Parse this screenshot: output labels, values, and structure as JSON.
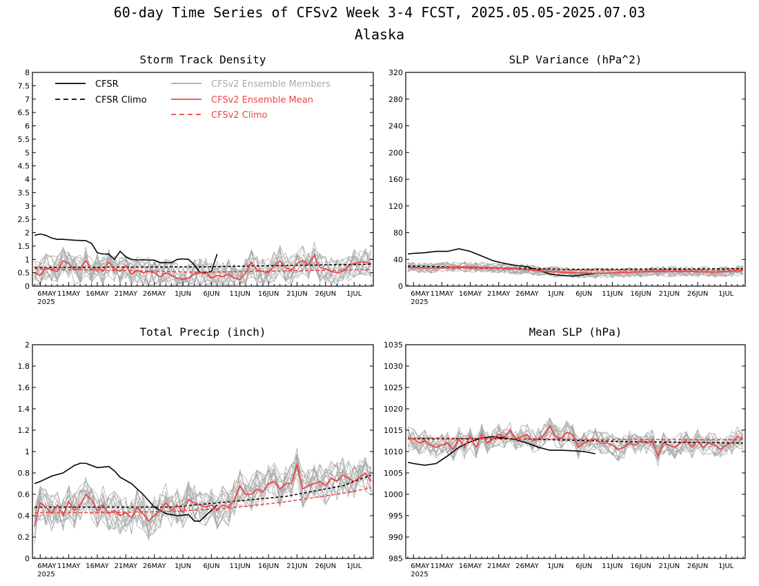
{
  "title": "60-day Time Series of CFSv2 Week 3-4 FCST, 2025.05.05-2025.07.03",
  "subtitle": "Alaska",
  "colors": {
    "cfsr": "#000000",
    "cfsr_climo": "#000000",
    "members": "#aaaaaa",
    "ens_mean": "#ee4444",
    "cfsv2_climo": "#ee4444"
  },
  "legend": {
    "cfsr": "CFSR",
    "cfsr_climo": "CFSR Climo",
    "members": "CFSv2 Ensemble Members",
    "ens_mean": "CFSv2 Ensemble Mean",
    "cfsv2_climo": "CFSv2 Climo"
  },
  "x_axis": {
    "days": 60,
    "start": "2025-05-05",
    "tick_labels": [
      "6MAY",
      "11MAY",
      "16MAY",
      "21MAY",
      "26MAY",
      "1JUN",
      "6JUN",
      "11JUN",
      "16JUN",
      "21JUN",
      "26JUN",
      "1JUL"
    ],
    "year_label": "2025"
  },
  "chart_data": [
    {
      "type": "line",
      "title": "Storm Track Density",
      "ylim": [
        0,
        8
      ],
      "yticks": [
        "0",
        "0.5",
        "1",
        "1.5",
        "2",
        "2.5",
        "3",
        "3.5",
        "4",
        "4.5",
        "5",
        "5.5",
        "6",
        "6.5",
        "7",
        "7.5",
        "8"
      ],
      "ytick_values": [
        0,
        0.5,
        1,
        1.5,
        2,
        2.5,
        3,
        3.5,
        4,
        4.5,
        5,
        5.5,
        6,
        6.5,
        7,
        7.5,
        8
      ],
      "series": [
        {
          "name": "CFSR",
          "x": [
            1,
            2,
            3,
            4,
            5,
            6,
            8,
            10,
            11,
            12,
            13,
            14,
            15,
            16,
            17,
            18,
            19,
            20,
            21,
            22,
            23,
            24,
            25,
            26,
            27,
            28,
            29,
            30,
            31,
            32,
            33
          ],
          "values": [
            1.9,
            1.95,
            1.9,
            1.8,
            1.75,
            1.75,
            1.72,
            1.7,
            1.6,
            1.25,
            1.2,
            1.2,
            1.0,
            1.3,
            1.1,
            1.0,
            0.98,
            0.98,
            0.98,
            0.97,
            0.88,
            0.88,
            0.88,
            1.0,
            1.02,
            1.0,
            0.8,
            0.5,
            0.5,
            0.55,
            1.2
          ]
        },
        {
          "name": "CFSR Climo",
          "x": [
            1,
            30,
            60
          ],
          "values": [
            0.7,
            0.72,
            0.82
          ]
        },
        {
          "name": "CFSv2 Climo",
          "x": [
            1,
            30,
            60
          ],
          "values": [
            0.65,
            0.52,
            0.62
          ]
        },
        {
          "name": "CFSv2 Ensemble Mean",
          "x": [
            1,
            2,
            3,
            4,
            5,
            6,
            7,
            8,
            9,
            10,
            11,
            12,
            13,
            14,
            15,
            16,
            17,
            18,
            19,
            20,
            21,
            22,
            23,
            24,
            25,
            26,
            27,
            28,
            29,
            30,
            31,
            32,
            33,
            34,
            35,
            36,
            37,
            38,
            39,
            40,
            41,
            42,
            43,
            44,
            45,
            46,
            47,
            48,
            49,
            50,
            51,
            52,
            53,
            54,
            55,
            56,
            57,
            58,
            59,
            60
          ],
          "values": [
            0.5,
            0.4,
            0.7,
            0.6,
            0.55,
            0.95,
            0.85,
            0.6,
            0.65,
            0.95,
            0.6,
            0.7,
            0.55,
            0.9,
            0.65,
            0.55,
            0.75,
            0.45,
            0.6,
            0.5,
            0.55,
            0.5,
            0.35,
            0.5,
            0.4,
            0.3,
            0.25,
            0.3,
            0.45,
            0.5,
            0.55,
            0.3,
            0.4,
            0.35,
            0.45,
            0.3,
            0.25,
            0.5,
            0.9,
            0.6,
            0.55,
            0.5,
            0.75,
            0.95,
            0.7,
            0.6,
            0.85,
            0.95,
            0.8,
            1.15,
            0.7,
            0.65,
            0.55,
            0.5,
            0.55,
            0.75,
            0.85,
            0.9,
            0.9,
            0.85
          ]
        }
      ]
    },
    {
      "type": "line",
      "title": "SLP Variance (hPa^2)",
      "ylim": [
        0,
        320
      ],
      "yticks": [
        "0",
        "40",
        "80",
        "120",
        "160",
        "200",
        "240",
        "280",
        "320"
      ],
      "ytick_values": [
        0,
        40,
        80,
        120,
        160,
        200,
        240,
        280,
        320
      ],
      "series": [
        {
          "name": "CFSR",
          "x": [
            1,
            2,
            4,
            6,
            8,
            10,
            12,
            14,
            16,
            18,
            20,
            22,
            24,
            26,
            28,
            30,
            32,
            34
          ],
          "values": [
            48,
            49,
            50,
            52,
            52,
            56,
            52,
            45,
            38,
            34,
            31,
            29,
            24,
            18,
            16,
            15,
            17,
            19
          ]
        },
        {
          "name": "CFSR Climo",
          "x": [
            1,
            30,
            60
          ],
          "values": [
            30,
            25,
            26
          ]
        },
        {
          "name": "CFSv2 Climo",
          "x": [
            1,
            30,
            60
          ],
          "values": [
            28,
            24,
            24
          ]
        },
        {
          "name": "CFSv2 Ensemble Mean",
          "x": [
            1,
            5,
            10,
            15,
            20,
            25,
            30,
            35,
            40,
            45,
            50,
            55,
            60
          ],
          "values": [
            28,
            27,
            29,
            28,
            26,
            22,
            20,
            19,
            21,
            22,
            22,
            21,
            23
          ]
        }
      ]
    },
    {
      "type": "line",
      "title": "Total Precip (inch)",
      "ylim": [
        0,
        2
      ],
      "yticks": [
        "0",
        "0.2",
        "0.4",
        "0.6",
        "0.8",
        "1",
        "1.2",
        "1.4",
        "1.6",
        "1.8",
        "2"
      ],
      "ytick_values": [
        0,
        0.2,
        0.4,
        0.6,
        0.8,
        1,
        1.2,
        1.4,
        1.6,
        1.8,
        2
      ],
      "series": [
        {
          "name": "CFSR",
          "x": [
            1,
            2,
            4,
            6,
            8,
            9,
            10,
            12,
            14,
            15,
            16,
            18,
            20,
            22,
            24,
            26,
            28,
            29,
            30,
            31,
            32,
            33
          ],
          "values": [
            0.7,
            0.72,
            0.77,
            0.8,
            0.87,
            0.89,
            0.89,
            0.85,
            0.86,
            0.82,
            0.76,
            0.7,
            0.6,
            0.48,
            0.42,
            0.4,
            0.41,
            0.35,
            0.35,
            0.4,
            0.45,
            0.5
          ]
        },
        {
          "name": "CFSR Climo",
          "x": [
            1,
            15,
            25,
            35,
            45,
            55,
            60
          ],
          "values": [
            0.48,
            0.48,
            0.48,
            0.53,
            0.58,
            0.68,
            0.78
          ]
        },
        {
          "name": "CFSv2 Climo",
          "x": [
            1,
            15,
            25,
            35,
            45,
            55,
            60
          ],
          "values": [
            0.43,
            0.43,
            0.44,
            0.47,
            0.53,
            0.61,
            0.66
          ]
        },
        {
          "name": "CFSv2 Ensemble Mean",
          "x": [
            1,
            2,
            3,
            4,
            5,
            6,
            7,
            8,
            9,
            10,
            11,
            12,
            13,
            14,
            15,
            16,
            17,
            18,
            19,
            20,
            21,
            22,
            23,
            24,
            25,
            26,
            27,
            28,
            29,
            30,
            31,
            32,
            33,
            34,
            35,
            36,
            37,
            38,
            39,
            40,
            41,
            42,
            43,
            44,
            45,
            46,
            47,
            48,
            49,
            50,
            51,
            52,
            53,
            54,
            55,
            56,
            57,
            58,
            59,
            60
          ],
          "values": [
            0.3,
            0.52,
            0.48,
            0.42,
            0.5,
            0.4,
            0.53,
            0.45,
            0.5,
            0.6,
            0.55,
            0.45,
            0.5,
            0.42,
            0.45,
            0.4,
            0.43,
            0.38,
            0.48,
            0.42,
            0.35,
            0.4,
            0.45,
            0.52,
            0.45,
            0.5,
            0.43,
            0.55,
            0.52,
            0.5,
            0.48,
            0.5,
            0.45,
            0.5,
            0.48,
            0.55,
            0.68,
            0.6,
            0.6,
            0.65,
            0.62,
            0.7,
            0.72,
            0.65,
            0.7,
            0.7,
            0.88,
            0.65,
            0.68,
            0.7,
            0.72,
            0.68,
            0.75,
            0.72,
            0.78,
            0.75,
            0.72,
            0.76,
            0.8,
            0.72
          ]
        }
      ]
    },
    {
      "type": "line",
      "title": "Mean SLP (hPa)",
      "ylim": [
        985,
        1035
      ],
      "yticks": [
        "985",
        "990",
        "995",
        "1000",
        "1005",
        "1010",
        "1015",
        "1020",
        "1025",
        "1030",
        "1035"
      ],
      "ytick_values": [
        985,
        990,
        995,
        1000,
        1005,
        1010,
        1015,
        1020,
        1025,
        1030,
        1035
      ],
      "series": [
        {
          "name": "CFSR",
          "x": [
            1,
            2,
            4,
            6,
            8,
            10,
            12,
            14,
            16,
            18,
            20,
            22,
            24,
            26,
            28,
            30,
            32,
            34
          ],
          "values": [
            1007.5,
            1007.2,
            1006.8,
            1007.2,
            1009,
            1011,
            1012.3,
            1013.2,
            1013.5,
            1013.2,
            1012.8,
            1012,
            1011,
            1010.3,
            1010.3,
            1010.2,
            1010,
            1009.5
          ]
        },
        {
          "name": "CFSR Climo",
          "x": [
            1,
            20,
            40,
            60
          ],
          "values": [
            1013,
            1013,
            1012.3,
            1012
          ]
        },
        {
          "name": "CFSv2 Climo",
          "x": [
            1,
            20,
            40,
            60
          ],
          "values": [
            1013.2,
            1013,
            1012.8,
            1012.8
          ]
        },
        {
          "name": "CFSv2 Ensemble Mean",
          "x": [
            1,
            2,
            3,
            4,
            5,
            6,
            7,
            8,
            9,
            10,
            11,
            12,
            13,
            14,
            15,
            16,
            17,
            18,
            19,
            20,
            21,
            22,
            23,
            24,
            25,
            26,
            27,
            28,
            29,
            30,
            31,
            32,
            33,
            34,
            35,
            36,
            37,
            38,
            39,
            40,
            41,
            42,
            43,
            44,
            45,
            46,
            47,
            48,
            49,
            50,
            51,
            52,
            53,
            54,
            55,
            56,
            57,
            58,
            59,
            60
          ],
          "values": [
            1013,
            1013,
            1012,
            1012.5,
            1011.5,
            1011,
            1011.5,
            1012,
            1010.5,
            1013,
            1011,
            1013.5,
            1011,
            1014,
            1012,
            1013,
            1014,
            1013.5,
            1015,
            1013,
            1013.5,
            1014,
            1012.5,
            1013,
            1014,
            1016,
            1013.5,
            1013,
            1014.5,
            1014,
            1011,
            1012,
            1012.5,
            1013,
            1012,
            1012,
            1011.5,
            1010.5,
            1011,
            1012,
            1011.5,
            1012.5,
            1012,
            1012.5,
            1009,
            1012,
            1011.5,
            1011,
            1012,
            1012.5,
            1011,
            1012.5,
            1011,
            1012,
            1011.5,
            1010.5,
            1011.5,
            1012,
            1013.5,
            1013
          ]
        }
      ]
    }
  ]
}
